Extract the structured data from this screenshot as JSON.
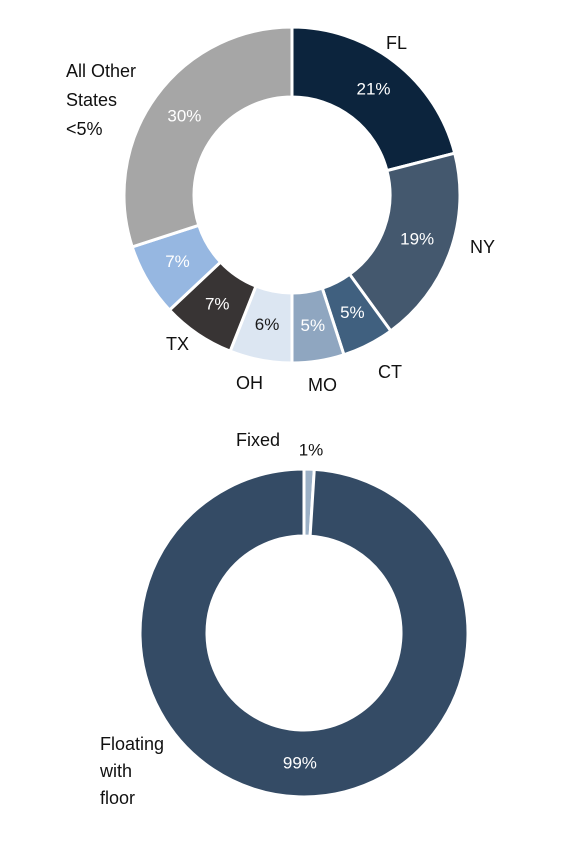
{
  "chart_data": [
    {
      "type": "donut",
      "title": "",
      "categories": [
        "FL",
        "NY",
        "CT",
        "MO",
        "OH",
        "TX",
        "",
        "All Other States <5%"
      ],
      "values": [
        21,
        19,
        5,
        5,
        6,
        7,
        7,
        30
      ],
      "value_labels": [
        "21%",
        "19%",
        "5%",
        "5%",
        "6%",
        "7%",
        "7%",
        "30%"
      ],
      "colors": [
        "#0c243d",
        "#44586e",
        "#40607f",
        "#8fa6c0",
        "#dce6f2",
        "#383434",
        "#96b7e1",
        "#a6a6a6"
      ],
      "value_label_colors": [
        "#ffffff",
        "#ffffff",
        "#ffffff",
        "#ffffff",
        "#1a1a1a",
        "#ffffff",
        "#ffffff",
        "#ffffff"
      ],
      "outer_labels": [
        {
          "lines": [
            "FL"
          ]
        },
        {
          "lines": [
            "NY"
          ]
        },
        {
          "lines": [
            "CT"
          ]
        },
        {
          "lines": [
            "MO"
          ]
        },
        {
          "lines": [
            "OH"
          ]
        },
        {
          "lines": [
            "TX"
          ]
        },
        {
          "lines": [
            "All Other",
            "States",
            "<5%"
          ]
        }
      ]
    },
    {
      "type": "donut",
      "title": "",
      "categories": [
        "Fixed",
        "Floating with floor"
      ],
      "values": [
        1,
        99
      ],
      "value_labels": [
        "1%",
        "99%"
      ],
      "colors": [
        "#9bb0c6",
        "#344b65"
      ],
      "value_label_colors": [
        "#111111",
        "#ffffff"
      ],
      "outer_labels": [
        {
          "lines": [
            "Fixed"
          ]
        },
        {
          "lines": [
            "Floating",
            "with",
            "floor"
          ]
        }
      ]
    }
  ]
}
